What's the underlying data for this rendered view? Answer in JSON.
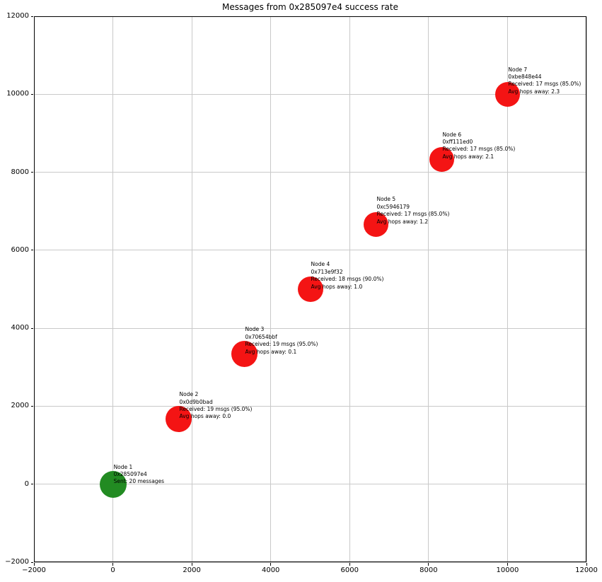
{
  "chart_data": {
    "type": "scatter",
    "title": "Messages from 0x285097e4 success rate",
    "xlabel": "",
    "ylabel": "",
    "xlim": [
      -2000,
      12000
    ],
    "ylim": [
      -2000,
      12000
    ],
    "xticks": [
      -2000,
      0,
      2000,
      4000,
      6000,
      8000,
      10000,
      12000
    ],
    "yticks": [
      -2000,
      0,
      2000,
      4000,
      6000,
      8000,
      10000,
      12000
    ],
    "xtick_labels": [
      "−2000",
      "0",
      "2000",
      "4000",
      "6000",
      "8000",
      "10000",
      "12000"
    ],
    "ytick_labels": [
      "−2000",
      "0",
      "2000",
      "4000",
      "6000",
      "8000",
      "10000",
      "12000"
    ],
    "grid": true,
    "legend": "none",
    "colors": {
      "sender": "#228b22",
      "receiver": "#f41414",
      "grid": "#c9c9c9",
      "frame": "#000000",
      "text": "#000000",
      "background": "#ffffff"
    },
    "sender_node": "0x285097e4",
    "messages_sent": 20,
    "points": [
      {
        "name": "node-1",
        "node": "Node 1",
        "address": "0x285097e4",
        "role": "sender",
        "x": 0,
        "y": 0,
        "color_key": "sender",
        "radius_px": 19,
        "sent": 20,
        "annotation": [
          "Node 1",
          "0x285097e4",
          "Sent: 20 messages"
        ]
      },
      {
        "name": "node-2",
        "node": "Node 2",
        "address": "0x0d9b0bad",
        "role": "receiver",
        "x": 1666.7,
        "y": 1666.7,
        "color_key": "receiver",
        "radius_px": 18.5,
        "received": 19,
        "success_rate_pct": 95.0,
        "avg_hops_away": 0.0,
        "annotation": [
          "Node 2",
          "0x0d9b0bad",
          "Received: 19 msgs (95.0%)",
          "Avg hops away: 0.0"
        ]
      },
      {
        "name": "node-3",
        "node": "Node 3",
        "address": "0x70654bbf",
        "role": "receiver",
        "x": 3333.3,
        "y": 3333.3,
        "color_key": "receiver",
        "radius_px": 18.5,
        "received": 19,
        "success_rate_pct": 95.0,
        "avg_hops_away": 0.1,
        "annotation": [
          "Node 3",
          "0x70654bbf",
          "Received: 19 msgs (95.0%)",
          "Avg hops away: 0.1"
        ]
      },
      {
        "name": "node-4",
        "node": "Node 4",
        "address": "0x713e9f32",
        "role": "receiver",
        "x": 5000,
        "y": 5000,
        "color_key": "receiver",
        "radius_px": 18,
        "received": 18,
        "success_rate_pct": 90.0,
        "avg_hops_away": 1.0,
        "annotation": [
          "Node 4",
          "0x713e9f32",
          "Received: 18 msgs (90.0%)",
          "Avg hops away: 1.0"
        ]
      },
      {
        "name": "node-5",
        "node": "Node 5",
        "address": "0xc5946179",
        "role": "receiver",
        "x": 6666.7,
        "y": 6666.7,
        "color_key": "receiver",
        "radius_px": 17.5,
        "received": 17,
        "success_rate_pct": 85.0,
        "avg_hops_away": 1.2,
        "annotation": [
          "Node 5",
          "0xc5946179",
          "Received: 17 msgs (85.0%)",
          "Avg hops away: 1.2"
        ]
      },
      {
        "name": "node-6",
        "node": "Node 6",
        "address": "0xff111ed0",
        "role": "receiver",
        "x": 8333.3,
        "y": 8333.3,
        "color_key": "receiver",
        "radius_px": 17.5,
        "received": 17,
        "success_rate_pct": 85.0,
        "avg_hops_away": 2.1,
        "annotation": [
          "Node 6",
          "0xff111ed0",
          "Received: 17 msgs (85.0%)",
          "Avg hops away: 2.1"
        ]
      },
      {
        "name": "node-7",
        "node": "Node 7",
        "address": "0xbe848e44",
        "role": "receiver",
        "x": 10000,
        "y": 10000,
        "color_key": "receiver",
        "radius_px": 17.5,
        "received": 17,
        "success_rate_pct": 85.0,
        "avg_hops_away": 2.3,
        "annotation": [
          "Node 7",
          "0xbe848e44",
          "Received: 17 msgs (85.0%)",
          "Avg hops away: 2.3"
        ]
      }
    ]
  }
}
